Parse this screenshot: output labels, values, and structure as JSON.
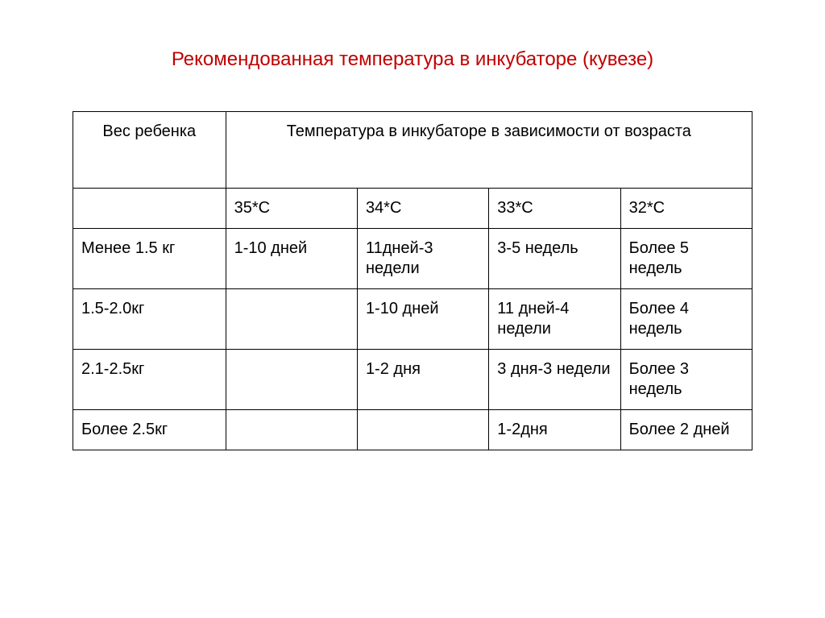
{
  "title": "Рекомендованная температура в инкубаторе (кувезе)",
  "table": {
    "header": {
      "weight": "Вес ребенка",
      "age": "Температура в инкубаторе в зависимости от возраста"
    },
    "temps": [
      "35*С",
      "34*С",
      "33*С",
      "32*С"
    ],
    "rows": [
      {
        "weight": "Менее 1.5 кг",
        "cells": [
          "1-10 дней",
          "11дней-3 недели",
          "3-5 недель",
          "Более 5 недель"
        ]
      },
      {
        "weight": "1.5-2.0кг",
        "cells": [
          "",
          "1-10 дней",
          "11 дней-4 недели",
          "Более 4 недель"
        ]
      },
      {
        "weight": "2.1-2.5кг",
        "cells": [
          "",
          "1-2 дня",
          "3 дня-3 недели",
          "Более 3 недель"
        ]
      },
      {
        "weight": "Более 2.5кг",
        "cells": [
          "",
          "",
          "1-2дня",
          "Более 2 дней"
        ]
      }
    ]
  },
  "style": {
    "title_color": "#c00000",
    "title_fontsize": 24,
    "cell_fontsize": 20,
    "border_color": "#000000",
    "background_color": "#ffffff",
    "columns": 5,
    "col_widths_pct": [
      20,
      20,
      20,
      20,
      20
    ]
  }
}
